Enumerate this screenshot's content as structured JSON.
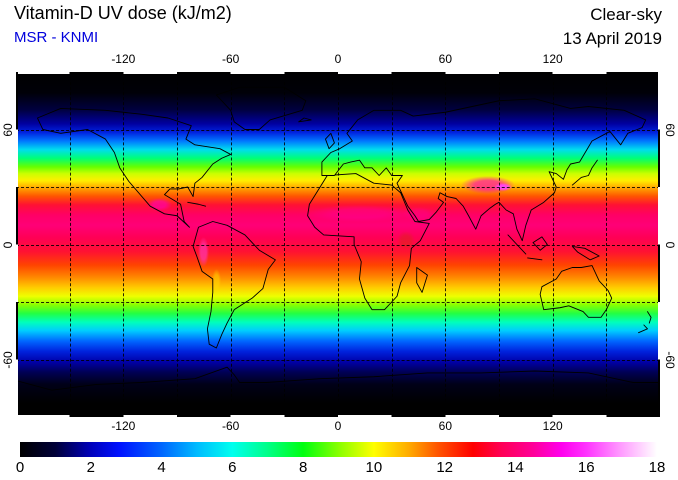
{
  "header": {
    "title": "Vitamin-D UV dose (kJ/m2)",
    "product": "MSR - KNMI",
    "condition": "Clear-sky",
    "date": "13 April 2019"
  },
  "colors": {
    "product_text": "#0000dd",
    "text": "#000000",
    "page_background": "#ffffff"
  },
  "map_axes": {
    "lon_range": [
      -180,
      180
    ],
    "lat_range": [
      -90,
      90
    ],
    "grid_interval_deg": 30,
    "lon_ticks": [
      {
        "value": -120,
        "label": "-120"
      },
      {
        "value": -60,
        "label": "-60"
      },
      {
        "value": 0,
        "label": "0"
      },
      {
        "value": 60,
        "label": "60"
      },
      {
        "value": 120,
        "label": "120"
      }
    ],
    "lat_ticks": [
      {
        "value": 60,
        "label": "60"
      },
      {
        "value": 0,
        "label": "0"
      },
      {
        "value": -60,
        "label": "-60"
      }
    ],
    "grid_lons": [
      -150,
      -120,
      -90,
      -60,
      -30,
      0,
      30,
      60,
      90,
      120,
      150
    ],
    "grid_lats": [
      60,
      30,
      0,
      -30,
      -60
    ]
  },
  "colorbar": {
    "min": 0,
    "max": 18,
    "ticks": [
      {
        "value": 0,
        "label": "0"
      },
      {
        "value": 2,
        "label": "2"
      },
      {
        "value": 4,
        "label": "4"
      },
      {
        "value": 6,
        "label": "6"
      },
      {
        "value": 8,
        "label": "8"
      },
      {
        "value": 10,
        "label": "10"
      },
      {
        "value": 12,
        "label": "12"
      },
      {
        "value": 14,
        "label": "14"
      },
      {
        "value": 16,
        "label": "16"
      },
      {
        "value": 18,
        "label": "18"
      }
    ],
    "gradient_stops": [
      {
        "v": 0,
        "c": "#000000"
      },
      {
        "v": 1,
        "c": "#000038"
      },
      {
        "v": 2,
        "c": "#0000bb"
      },
      {
        "v": 2.8,
        "c": "#0011ff"
      },
      {
        "v": 4,
        "c": "#0066ff"
      },
      {
        "v": 5,
        "c": "#00bbff"
      },
      {
        "v": 6,
        "c": "#00ffee"
      },
      {
        "v": 7,
        "c": "#00ff88"
      },
      {
        "v": 8,
        "c": "#00ff11"
      },
      {
        "v": 9,
        "c": "#88ff00"
      },
      {
        "v": 10,
        "c": "#ffff00"
      },
      {
        "v": 11,
        "c": "#ffaa00"
      },
      {
        "v": 11.8,
        "c": "#ff5500"
      },
      {
        "v": 12.8,
        "c": "#ff0000"
      },
      {
        "v": 13.6,
        "c": "#ff0055"
      },
      {
        "v": 14.5,
        "c": "#ff0099"
      },
      {
        "v": 15.3,
        "c": "#ff00ee"
      },
      {
        "v": 16,
        "c": "#ff33ff"
      },
      {
        "v": 17,
        "c": "#ff9dff"
      },
      {
        "v": 18,
        "c": "#ffffff"
      }
    ]
  },
  "chart_data": {
    "type": "heatmap",
    "title": "Vitamin-D UV dose (kJ/m2)",
    "source_label": "MSR - KNMI",
    "sky_condition": "Clear-sky",
    "date": "13 April 2019",
    "projection": "equirectangular",
    "x": "longitude_deg",
    "y": "latitude_deg",
    "value_unit": "kJ/m2",
    "value_range": [
      0,
      18
    ],
    "latitude_profile": {
      "latitudes": [
        90,
        80,
        70,
        60,
        50,
        45,
        40,
        35,
        30,
        25,
        20,
        15,
        10,
        5,
        0,
        -5,
        -10,
        -15,
        -20,
        -25,
        -30,
        -35,
        -40,
        -45,
        -50,
        -55,
        -60,
        -70,
        -80,
        -90
      ],
      "values": [
        0,
        0.3,
        1,
        2,
        4.5,
        6.5,
        8,
        9.5,
        10.5,
        11.5,
        12.5,
        13.5,
        14,
        13.8,
        13.4,
        13,
        12.7,
        12,
        11.2,
        10,
        8.8,
        7.3,
        6,
        4.8,
        3.6,
        2.6,
        1.8,
        0.7,
        0.1,
        0
      ]
    },
    "anomalies": [
      {
        "name": "sahel-band",
        "lon": 12,
        "lat": 16,
        "w_deg": 60,
        "h_deg": 9,
        "value": 14,
        "color": "#ff0099",
        "opacity": 0.45
      },
      {
        "name": "arabia",
        "lon": 45,
        "lat": 16,
        "w_deg": 18,
        "h_deg": 7,
        "value": 14,
        "color": "#ff0099",
        "opacity": 0.35
      },
      {
        "name": "tibetan-plateau",
        "lon": 84,
        "lat": 31,
        "w_deg": 30,
        "h_deg": 9,
        "value": 15,
        "color": "#ff2299",
        "opacity": 0.8
      },
      {
        "name": "tibetan-plateau-core",
        "lon": 92,
        "lat": 30,
        "w_deg": 10,
        "h_deg": 4,
        "value": 16,
        "color": "#ff44ff",
        "opacity": 0.9
      },
      {
        "name": "mexican-plateau",
        "lon": -100,
        "lat": 21,
        "w_deg": 14,
        "h_deg": 7,
        "value": 14.5,
        "color": "#ff00bb",
        "opacity": 0.6
      },
      {
        "name": "andes-north",
        "lon": -75,
        "lat": -4,
        "w_deg": 6,
        "h_deg": 16,
        "value": 15,
        "color": "#ff33aa",
        "opacity": 0.75
      },
      {
        "name": "andes-south",
        "lon": -68,
        "lat": -19,
        "w_deg": 5,
        "h_deg": 12,
        "value": 10.5,
        "color": "#ffdd00",
        "opacity": 0.5
      },
      {
        "name": "east-africa-highlands",
        "lon": 38,
        "lat": 2,
        "w_deg": 10,
        "h_deg": 10,
        "value": 12.5,
        "color": "#cc3300",
        "opacity": 0.35
      }
    ],
    "latitude_color_stops": [
      {
        "pct": 0,
        "color": "#000000"
      },
      {
        "pct": 6,
        "color": "#000008"
      },
      {
        "pct": 11,
        "color": "#000040"
      },
      {
        "pct": 15,
        "color": "#0000a0"
      },
      {
        "pct": 17.5,
        "color": "#0022e0"
      },
      {
        "pct": 20,
        "color": "#0077ff"
      },
      {
        "pct": 22.5,
        "color": "#00ddee"
      },
      {
        "pct": 25,
        "color": "#00ff77"
      },
      {
        "pct": 27.5,
        "color": "#66ff00"
      },
      {
        "pct": 29.5,
        "color": "#ccff00"
      },
      {
        "pct": 31.5,
        "color": "#ffee00"
      },
      {
        "pct": 33.5,
        "color": "#ffaa00"
      },
      {
        "pct": 36,
        "color": "#ff5500"
      },
      {
        "pct": 38.5,
        "color": "#ff1133"
      },
      {
        "pct": 41.5,
        "color": "#ff0066"
      },
      {
        "pct": 44.5,
        "color": "#ff0077"
      },
      {
        "pct": 48,
        "color": "#ff0055"
      },
      {
        "pct": 52,
        "color": "#ff1133"
      },
      {
        "pct": 56,
        "color": "#ff4400"
      },
      {
        "pct": 59.5,
        "color": "#ff8800"
      },
      {
        "pct": 62.5,
        "color": "#ffcc00"
      },
      {
        "pct": 65,
        "color": "#eeff00"
      },
      {
        "pct": 67.5,
        "color": "#88ff00"
      },
      {
        "pct": 70,
        "color": "#22ff44"
      },
      {
        "pct": 72.5,
        "color": "#00ffbb"
      },
      {
        "pct": 75,
        "color": "#00ccff"
      },
      {
        "pct": 78,
        "color": "#0066ff"
      },
      {
        "pct": 81,
        "color": "#0022dd"
      },
      {
        "pct": 84,
        "color": "#0000a8"
      },
      {
        "pct": 87,
        "color": "#000055"
      },
      {
        "pct": 90.5,
        "color": "#000018"
      },
      {
        "pct": 96,
        "color": "#000000"
      },
      {
        "pct": 100,
        "color": "#000000"
      }
    ]
  }
}
